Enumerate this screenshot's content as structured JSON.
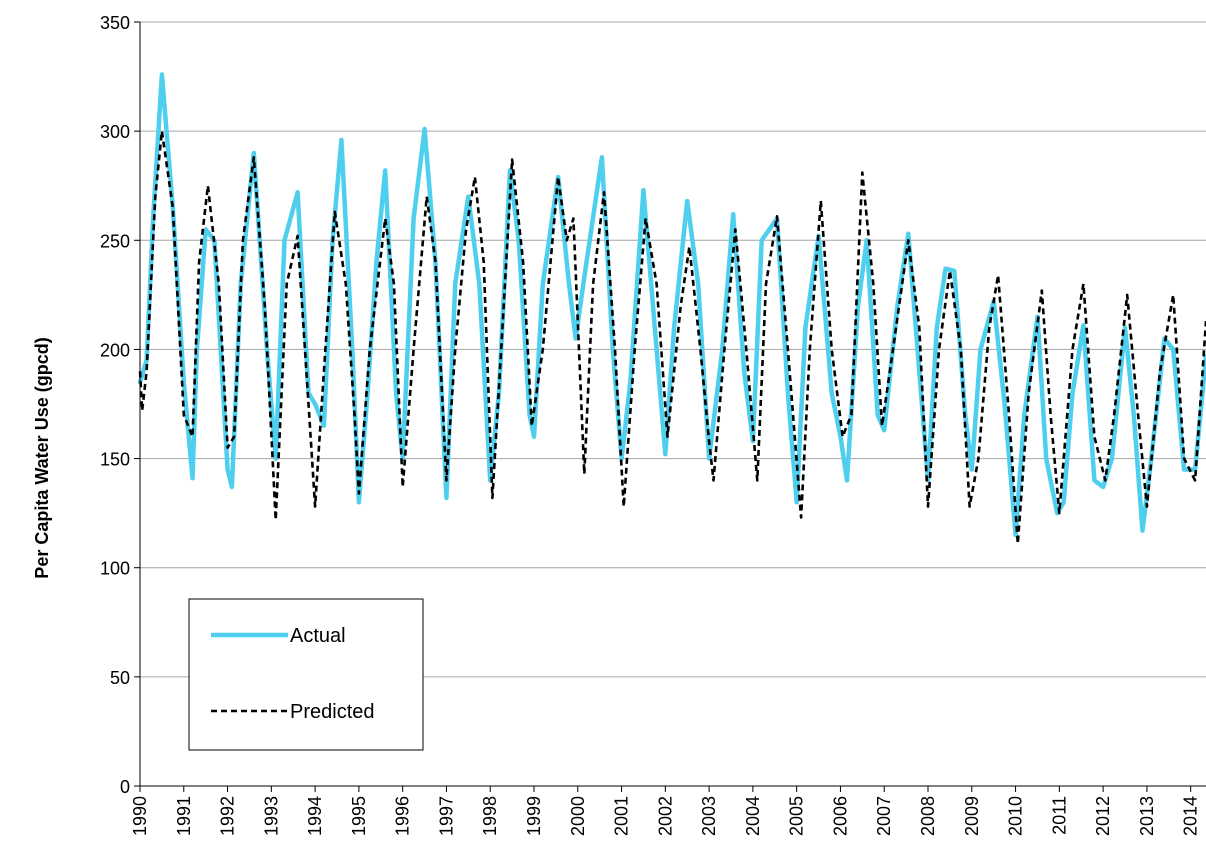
{
  "chart_data": {
    "type": "line",
    "title": "",
    "xlabel": "",
    "ylabel": "Per Capita Water Use (gpcd)",
    "ylim": [
      0,
      350
    ],
    "yticks": [
      0,
      50,
      100,
      150,
      200,
      250,
      300,
      350
    ],
    "xlim": [
      1990,
      2014.35
    ],
    "xticks": [
      "1990",
      "1991",
      "1992",
      "1993",
      "1994",
      "1995",
      "1996",
      "1997",
      "1998",
      "1999",
      "2000",
      "2001",
      "2002",
      "2003",
      "2004",
      "2005",
      "2006",
      "2007",
      "2008",
      "2009",
      "2010",
      "2011",
      "2012",
      "2013",
      "2014"
    ],
    "grid": "horizontal",
    "legend_position": "bottom-left",
    "series": [
      {
        "name": "Actual",
        "color": "#4fcfee",
        "style": "solid",
        "points": [
          [
            1990.0,
            185
          ],
          [
            1990.15,
            195
          ],
          [
            1990.3,
            260
          ],
          [
            1990.5,
            326
          ],
          [
            1990.75,
            265
          ],
          [
            1991.0,
            185
          ],
          [
            1991.2,
            141
          ],
          [
            1991.3,
            200
          ],
          [
            1991.5,
            255
          ],
          [
            1991.7,
            250
          ],
          [
            1992.0,
            145
          ],
          [
            1992.1,
            137
          ],
          [
            1992.3,
            230
          ],
          [
            1992.6,
            290
          ],
          [
            1992.9,
            200
          ],
          [
            1993.1,
            150
          ],
          [
            1993.3,
            250
          ],
          [
            1993.6,
            272
          ],
          [
            1993.85,
            180
          ],
          [
            1994.0,
            175
          ],
          [
            1994.2,
            165
          ],
          [
            1994.4,
            250
          ],
          [
            1994.6,
            296
          ],
          [
            1994.85,
            200
          ],
          [
            1995.0,
            130
          ],
          [
            1995.2,
            180
          ],
          [
            1995.4,
            240
          ],
          [
            1995.6,
            282
          ],
          [
            1995.85,
            180
          ],
          [
            1996.0,
            150
          ],
          [
            1996.25,
            260
          ],
          [
            1996.5,
            301
          ],
          [
            1996.75,
            240
          ],
          [
            1997.0,
            132
          ],
          [
            1997.2,
            230
          ],
          [
            1997.5,
            270
          ],
          [
            1997.75,
            230
          ],
          [
            1998.0,
            140
          ],
          [
            1998.2,
            180
          ],
          [
            1998.45,
            282
          ],
          [
            1998.65,
            250
          ],
          [
            1998.9,
            170
          ],
          [
            1999.0,
            160
          ],
          [
            1999.2,
            230
          ],
          [
            1999.55,
            279
          ],
          [
            1999.8,
            230
          ],
          [
            1999.95,
            205
          ],
          [
            2000.2,
            240
          ],
          [
            2000.55,
            288
          ],
          [
            2000.8,
            200
          ],
          [
            2001.0,
            150
          ],
          [
            2001.2,
            185
          ],
          [
            2001.5,
            273
          ],
          [
            2001.8,
            200
          ],
          [
            2002.0,
            152
          ],
          [
            2002.2,
            210
          ],
          [
            2002.5,
            268
          ],
          [
            2002.75,
            230
          ],
          [
            2003.0,
            150
          ],
          [
            2003.3,
            200
          ],
          [
            2003.55,
            262
          ],
          [
            2003.8,
            190
          ],
          [
            2004.0,
            158
          ],
          [
            2004.2,
            250
          ],
          [
            2004.55,
            260
          ],
          [
            2004.8,
            180
          ],
          [
            2005.0,
            130
          ],
          [
            2005.2,
            210
          ],
          [
            2005.5,
            252
          ],
          [
            2005.8,
            180
          ],
          [
            2006.0,
            160
          ],
          [
            2006.15,
            140
          ],
          [
            2006.4,
            220
          ],
          [
            2006.6,
            250
          ],
          [
            2006.85,
            170
          ],
          [
            2007.0,
            163
          ],
          [
            2007.3,
            220
          ],
          [
            2007.55,
            253
          ],
          [
            2007.8,
            190
          ],
          [
            2008.0,
            140
          ],
          [
            2008.2,
            210
          ],
          [
            2008.4,
            237
          ],
          [
            2008.6,
            236
          ],
          [
            2008.85,
            170
          ],
          [
            2009.0,
            145
          ],
          [
            2009.2,
            200
          ],
          [
            2009.5,
            222
          ],
          [
            2009.75,
            175
          ],
          [
            2010.0,
            115
          ],
          [
            2010.2,
            170
          ],
          [
            2010.5,
            215
          ],
          [
            2010.7,
            150
          ],
          [
            2010.95,
            125
          ],
          [
            2011.1,
            130
          ],
          [
            2011.3,
            180
          ],
          [
            2011.55,
            211
          ],
          [
            2011.8,
            140
          ],
          [
            2012.0,
            137
          ],
          [
            2012.2,
            150
          ],
          [
            2012.5,
            210
          ],
          [
            2012.7,
            170
          ],
          [
            2012.9,
            117
          ],
          [
            2013.1,
            150
          ],
          [
            2013.4,
            205
          ],
          [
            2013.6,
            200
          ],
          [
            2013.85,
            145
          ],
          [
            2014.1,
            145
          ],
          [
            2014.35,
            197
          ]
        ]
      },
      {
        "name": "Predicted",
        "color": "#000000",
        "style": "dashed",
        "points": [
          [
            1990.0,
            190
          ],
          [
            1990.05,
            172
          ],
          [
            1990.15,
            190
          ],
          [
            1990.35,
            270
          ],
          [
            1990.5,
            300
          ],
          [
            1990.75,
            265
          ],
          [
            1991.0,
            170
          ],
          [
            1991.2,
            160
          ],
          [
            1991.35,
            240
          ],
          [
            1991.55,
            275
          ],
          [
            1991.8,
            230
          ],
          [
            1992.0,
            155
          ],
          [
            1992.15,
            160
          ],
          [
            1992.35,
            250
          ],
          [
            1992.6,
            288
          ],
          [
            1992.85,
            220
          ],
          [
            1993.1,
            122
          ],
          [
            1993.35,
            230
          ],
          [
            1993.6,
            252
          ],
          [
            1993.85,
            175
          ],
          [
            1994.0,
            128
          ],
          [
            1994.2,
            190
          ],
          [
            1994.45,
            263
          ],
          [
            1994.7,
            230
          ],
          [
            1994.9,
            170
          ],
          [
            1995.0,
            134
          ],
          [
            1995.25,
            200
          ],
          [
            1995.6,
            260
          ],
          [
            1995.8,
            230
          ],
          [
            1996.0,
            137
          ],
          [
            1996.25,
            200
          ],
          [
            1996.55,
            270
          ],
          [
            1996.75,
            240
          ],
          [
            1997.0,
            140
          ],
          [
            1997.2,
            200
          ],
          [
            1997.45,
            255
          ],
          [
            1997.65,
            279
          ],
          [
            1997.85,
            240
          ],
          [
            1998.05,
            132
          ],
          [
            1998.25,
            200
          ],
          [
            1998.5,
            287
          ],
          [
            1998.75,
            240
          ],
          [
            1998.95,
            165
          ],
          [
            1999.2,
            200
          ],
          [
            1999.55,
            279
          ],
          [
            1999.75,
            250
          ],
          [
            1999.9,
            260
          ],
          [
            2000.15,
            143
          ],
          [
            2000.35,
            230
          ],
          [
            2000.6,
            272
          ],
          [
            2000.85,
            200
          ],
          [
            2001.05,
            128
          ],
          [
            2001.3,
            200
          ],
          [
            2001.55,
            260
          ],
          [
            2001.8,
            230
          ],
          [
            2002.05,
            160
          ],
          [
            2002.35,
            220
          ],
          [
            2002.55,
            247
          ],
          [
            2002.8,
            200
          ],
          [
            2003.0,
            158
          ],
          [
            2003.1,
            140
          ],
          [
            2003.35,
            200
          ],
          [
            2003.6,
            255
          ],
          [
            2003.85,
            200
          ],
          [
            2004.1,
            140
          ],
          [
            2004.3,
            230
          ],
          [
            2004.55,
            261
          ],
          [
            2004.8,
            200
          ],
          [
            2005.1,
            123
          ],
          [
            2005.3,
            200
          ],
          [
            2005.55,
            268
          ],
          [
            2005.8,
            200
          ],
          [
            2006.05,
            160
          ],
          [
            2006.25,
            170
          ],
          [
            2006.5,
            281
          ],
          [
            2006.75,
            230
          ],
          [
            2006.95,
            165
          ],
          [
            2007.2,
            200
          ],
          [
            2007.55,
            250
          ],
          [
            2007.8,
            210
          ],
          [
            2008.0,
            128
          ],
          [
            2008.25,
            200
          ],
          [
            2008.5,
            236
          ],
          [
            2008.75,
            200
          ],
          [
            2008.95,
            128
          ],
          [
            2009.15,
            150
          ],
          [
            2009.4,
            210
          ],
          [
            2009.6,
            234
          ],
          [
            2009.85,
            170
          ],
          [
            2010.05,
            111
          ],
          [
            2010.3,
            180
          ],
          [
            2010.6,
            227
          ],
          [
            2010.8,
            170
          ],
          [
            2011.0,
            125
          ],
          [
            2011.3,
            200
          ],
          [
            2011.55,
            230
          ],
          [
            2011.8,
            160
          ],
          [
            2012.05,
            140
          ],
          [
            2012.25,
            170
          ],
          [
            2012.55,
            225
          ],
          [
            2012.8,
            170
          ],
          [
            2013.0,
            128
          ],
          [
            2013.3,
            190
          ],
          [
            2013.6,
            225
          ],
          [
            2013.85,
            150
          ],
          [
            2014.1,
            140
          ],
          [
            2014.35,
            213
          ]
        ]
      }
    ]
  }
}
